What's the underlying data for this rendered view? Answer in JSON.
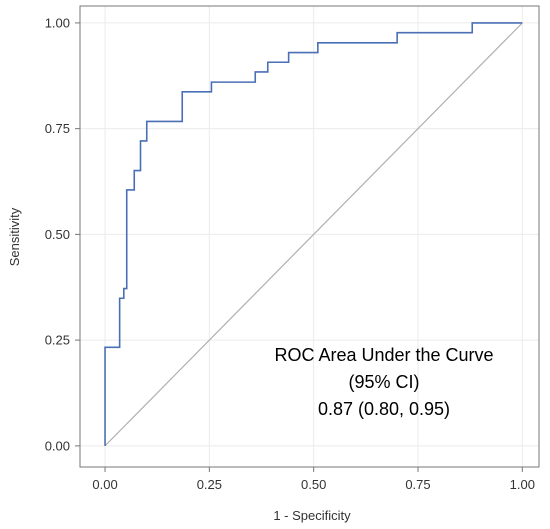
{
  "chart_data": {
    "type": "line",
    "xlabel": "1 - Specificity",
    "ylabel": "Sensitivity",
    "xlim": [
      -0.06,
      1.04
    ],
    "ylim": [
      -0.05,
      1.04
    ],
    "grid": true,
    "x_ticks": [
      "0.00",
      "0.25",
      "0.50",
      "0.75",
      "1.00"
    ],
    "y_ticks": [
      "0.00",
      "0.25",
      "0.50",
      "0.75",
      "1.00"
    ],
    "roc_curve": {
      "x": [
        0.0,
        0.0,
        0.035,
        0.035,
        0.045,
        0.045,
        0.052,
        0.052,
        0.07,
        0.07,
        0.085,
        0.085,
        0.1,
        0.1,
        0.185,
        0.185,
        0.255,
        0.255,
        0.36,
        0.36,
        0.39,
        0.39,
        0.44,
        0.44,
        0.51,
        0.51,
        0.7,
        0.7,
        0.88,
        0.88,
        1.0
      ],
      "y": [
        0.0,
        0.233,
        0.233,
        0.349,
        0.349,
        0.372,
        0.372,
        0.605,
        0.605,
        0.651,
        0.651,
        0.721,
        0.721,
        0.767,
        0.767,
        0.837,
        0.837,
        0.86,
        0.86,
        0.884,
        0.884,
        0.907,
        0.907,
        0.93,
        0.93,
        0.953,
        0.953,
        0.977,
        0.977,
        1.0,
        1.0
      ],
      "color": "#4a6fb5"
    },
    "reference_line": {
      "x": [
        0,
        1
      ],
      "y": [
        0,
        1
      ],
      "color": "#b0b0b0"
    },
    "annotation": {
      "lines": [
        "ROC Area Under the Curve",
        "(95% CI)",
        "0.87 (0.80, 0.95)"
      ]
    },
    "grid_color": "#ebebeb",
    "frame_color": "#777777"
  }
}
